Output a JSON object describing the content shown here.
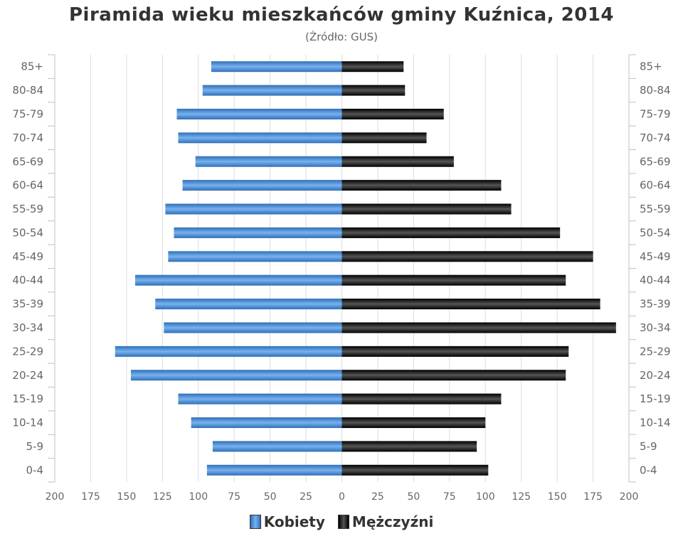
{
  "title": "Piramida wieku mieszkańców gminy Kuźnica, 2014",
  "subtitle": "(Źródło: GUS)",
  "chart_data": {
    "type": "bar",
    "orientation": "horizontal-pyramid",
    "categories": [
      "0-4",
      "5-9",
      "10-14",
      "15-19",
      "20-24",
      "25-29",
      "30-34",
      "35-39",
      "40-44",
      "45-49",
      "50-54",
      "55-59",
      "60-64",
      "65-69",
      "70-74",
      "75-79",
      "80-84",
      "85+"
    ],
    "series": [
      {
        "name": "Kobiety",
        "side": "left",
        "color": "#4a8bd4",
        "values": [
          94,
          90,
          105,
          114,
          147,
          158,
          124,
          130,
          144,
          121,
          117,
          123,
          111,
          102,
          114,
          115,
          97,
          91
        ]
      },
      {
        "name": "Mężczyźni",
        "side": "right",
        "color": "#222222",
        "values": [
          102,
          94,
          100,
          111,
          156,
          158,
          191,
          180,
          156,
          175,
          152,
          118,
          111,
          78,
          59,
          71,
          44,
          43
        ]
      }
    ],
    "xlim": [
      -200,
      200
    ],
    "xticks": [
      "200",
      "175",
      "150",
      "125",
      "100",
      "75",
      "50",
      "25",
      "0",
      "25",
      "50",
      "75",
      "100",
      "125",
      "150",
      "175",
      "200"
    ],
    "grid": true,
    "legend_position": "bottom-center"
  }
}
